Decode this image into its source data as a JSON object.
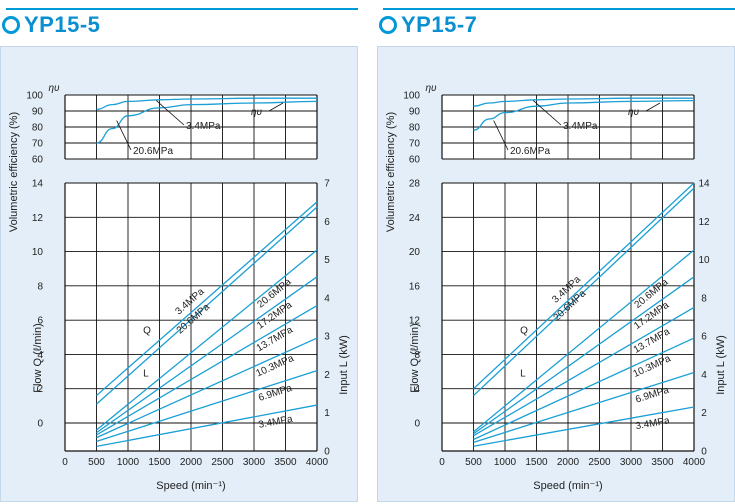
{
  "charts": [
    {
      "title": "YP15-5",
      "ylabel_top": "Volumetric efficiency (%)",
      "ylabel_left": "Flow Q (ℓ/min)",
      "ylabel_right": "Input L (kW)",
      "xlabel": "Speed (min⁻¹)",
      "eta_symbol": "ηυ",
      "eta_ticks": [
        "100",
        "90",
        "80",
        "70",
        "60"
      ],
      "flow_ticks": [
        "14",
        "12",
        "10",
        "8",
        "6",
        "4",
        "2",
        "0"
      ],
      "power_ticks": [
        "7",
        "6",
        "5",
        "4",
        "3",
        "2",
        "1",
        "0"
      ],
      "x_ticks": [
        "0",
        "500",
        "1000",
        "1500",
        "2000",
        "2500",
        "3000",
        "3500",
        "4000"
      ],
      "eta_label": "ηυ",
      "eff_labels": [
        "3.4MPa",
        "20.6MPa"
      ],
      "flow_letter": "Q",
      "power_letter": "L",
      "flow_labels": [
        "3.4MPa",
        "20.6MPa"
      ],
      "power_labels": [
        "20.6MPa",
        "17.2MPa",
        "13.7MPa",
        "10.3MPa",
        "6.9MPa",
        "3.4MPa"
      ]
    },
    {
      "title": "YP15-7",
      "ylabel_top": "Volumetric efficiency (%)",
      "ylabel_left": "Flow Q (ℓ/min)",
      "ylabel_right": "Input L (kW)",
      "xlabel": "Speed (min⁻¹)",
      "eta_symbol": "ηυ",
      "eta_ticks": [
        "100",
        "90",
        "80",
        "70",
        "60"
      ],
      "flow_ticks": [
        "28",
        "24",
        "20",
        "16",
        "12",
        "8",
        "4",
        "0"
      ],
      "power_ticks": [
        "14",
        "12",
        "10",
        "8",
        "6",
        "4",
        "2",
        "0"
      ],
      "x_ticks": [
        "0",
        "500",
        "1000",
        "1500",
        "2000",
        "2500",
        "3000",
        "3500",
        "4000"
      ],
      "eta_label": "ηυ",
      "eff_labels": [
        "3.4MPa",
        "20.6MPa"
      ],
      "flow_letter": "Q",
      "power_letter": "L",
      "flow_labels": [
        "3.4MPa",
        "20.6MPa"
      ],
      "power_labels": [
        "20.6MPa",
        "17.2MPa",
        "13.7MPa",
        "10.3MPa",
        "6.9MPa",
        "3.4MPa"
      ]
    }
  ],
  "chart_data": [
    {
      "type": "line",
      "title": "YP15-5",
      "xlabel": "Speed (min⁻¹)",
      "xlim": [
        0,
        4000
      ],
      "panels": [
        {
          "name": "efficiency",
          "ylabel": "Volumetric efficiency (%)",
          "ylim": [
            60,
            100
          ],
          "series": [
            {
              "name": "3.4MPa",
              "x": [
                500,
                750,
                1000,
                1500,
                2000,
                3000,
                4000
              ],
              "y": [
                91,
                94,
                96,
                97,
                97.5,
                98,
                98
              ]
            },
            {
              "name": "20.6MPa",
              "x": [
                500,
                750,
                1000,
                1500,
                2000,
                3000,
                4000
              ],
              "y": [
                70,
                79,
                87,
                92,
                94,
                95,
                96
              ]
            }
          ]
        },
        {
          "name": "flow",
          "ylabel": "Flow Q (ℓ/min)",
          "ylim": [
            0,
            14
          ],
          "series": [
            {
              "name": "3.4MPa",
              "x": [
                500,
                4000
              ],
              "y": [
                1.6,
                12.9
              ]
            },
            {
              "name": "20.6MPa",
              "x": [
                500,
                4000
              ],
              "y": [
                1.1,
                12.6
              ]
            }
          ]
        },
        {
          "name": "input",
          "ylabel": "Input L (kW)",
          "ylim": [
            0,
            7
          ],
          "series": [
            {
              "name": "20.6MPa",
              "x": [
                500,
                4000
              ],
              "y": [
                0.55,
                5.25
              ]
            },
            {
              "name": "17.2MPa",
              "x": [
                500,
                4000
              ],
              "y": [
                0.48,
                4.55
              ]
            },
            {
              "name": "13.7MPa",
              "x": [
                500,
                4000
              ],
              "y": [
                0.42,
                3.8
              ]
            },
            {
              "name": "10.3MPa",
              "x": [
                500,
                4000
              ],
              "y": [
                0.35,
                2.95
              ]
            },
            {
              "name": "6.9MPa",
              "x": [
                500,
                4000
              ],
              "y": [
                0.25,
                2.1
              ]
            },
            {
              "name": "3.4MPa",
              "x": [
                500,
                4000
              ],
              "y": [
                0.12,
                1.2
              ]
            }
          ]
        }
      ]
    },
    {
      "type": "line",
      "title": "YP15-7",
      "xlabel": "Speed (min⁻¹)",
      "xlim": [
        0,
        4000
      ],
      "panels": [
        {
          "name": "efficiency",
          "ylabel": "Volumetric efficiency (%)",
          "ylim": [
            60,
            100
          ],
          "series": [
            {
              "name": "3.4MPa",
              "x": [
                500,
                750,
                1000,
                1500,
                2000,
                3000,
                4000
              ],
              "y": [
                93,
                95,
                96,
                97,
                97.5,
                98,
                98
              ]
            },
            {
              "name": "20.6MPa",
              "x": [
                500,
                750,
                1000,
                1500,
                2000,
                3000,
                4000
              ],
              "y": [
                78,
                85,
                89,
                93,
                95,
                96,
                96.5
              ]
            }
          ]
        },
        {
          "name": "flow",
          "ylabel": "Flow Q (ℓ/min)",
          "ylim": [
            0,
            28
          ],
          "series": [
            {
              "name": "3.4MPa",
              "x": [
                500,
                4000
              ],
              "y": [
                4,
                28
              ]
            },
            {
              "name": "20.6MPa",
              "x": [
                500,
                4000
              ],
              "y": [
                3.2,
                27.4
              ]
            }
          ]
        },
        {
          "name": "input",
          "ylabel": "Input L (kW)",
          "ylim": [
            0,
            14
          ],
          "series": [
            {
              "name": "20.6MPa",
              "x": [
                500,
                4000
              ],
              "y": [
                1.0,
                10.5
              ]
            },
            {
              "name": "17.2MPa",
              "x": [
                500,
                4000
              ],
              "y": [
                0.9,
                9.1
              ]
            },
            {
              "name": "13.7MPa",
              "x": [
                500,
                4000
              ],
              "y": [
                0.8,
                7.5
              ]
            },
            {
              "name": "10.3MPa",
              "x": [
                500,
                4000
              ],
              "y": [
                0.6,
                5.9
              ]
            },
            {
              "name": "6.9MPa",
              "x": [
                500,
                4000
              ],
              "y": [
                0.45,
                4.1
              ]
            },
            {
              "name": "3.4MPa",
              "x": [
                500,
                4000
              ],
              "y": [
                0.25,
                2.3
              ]
            }
          ]
        }
      ]
    }
  ]
}
